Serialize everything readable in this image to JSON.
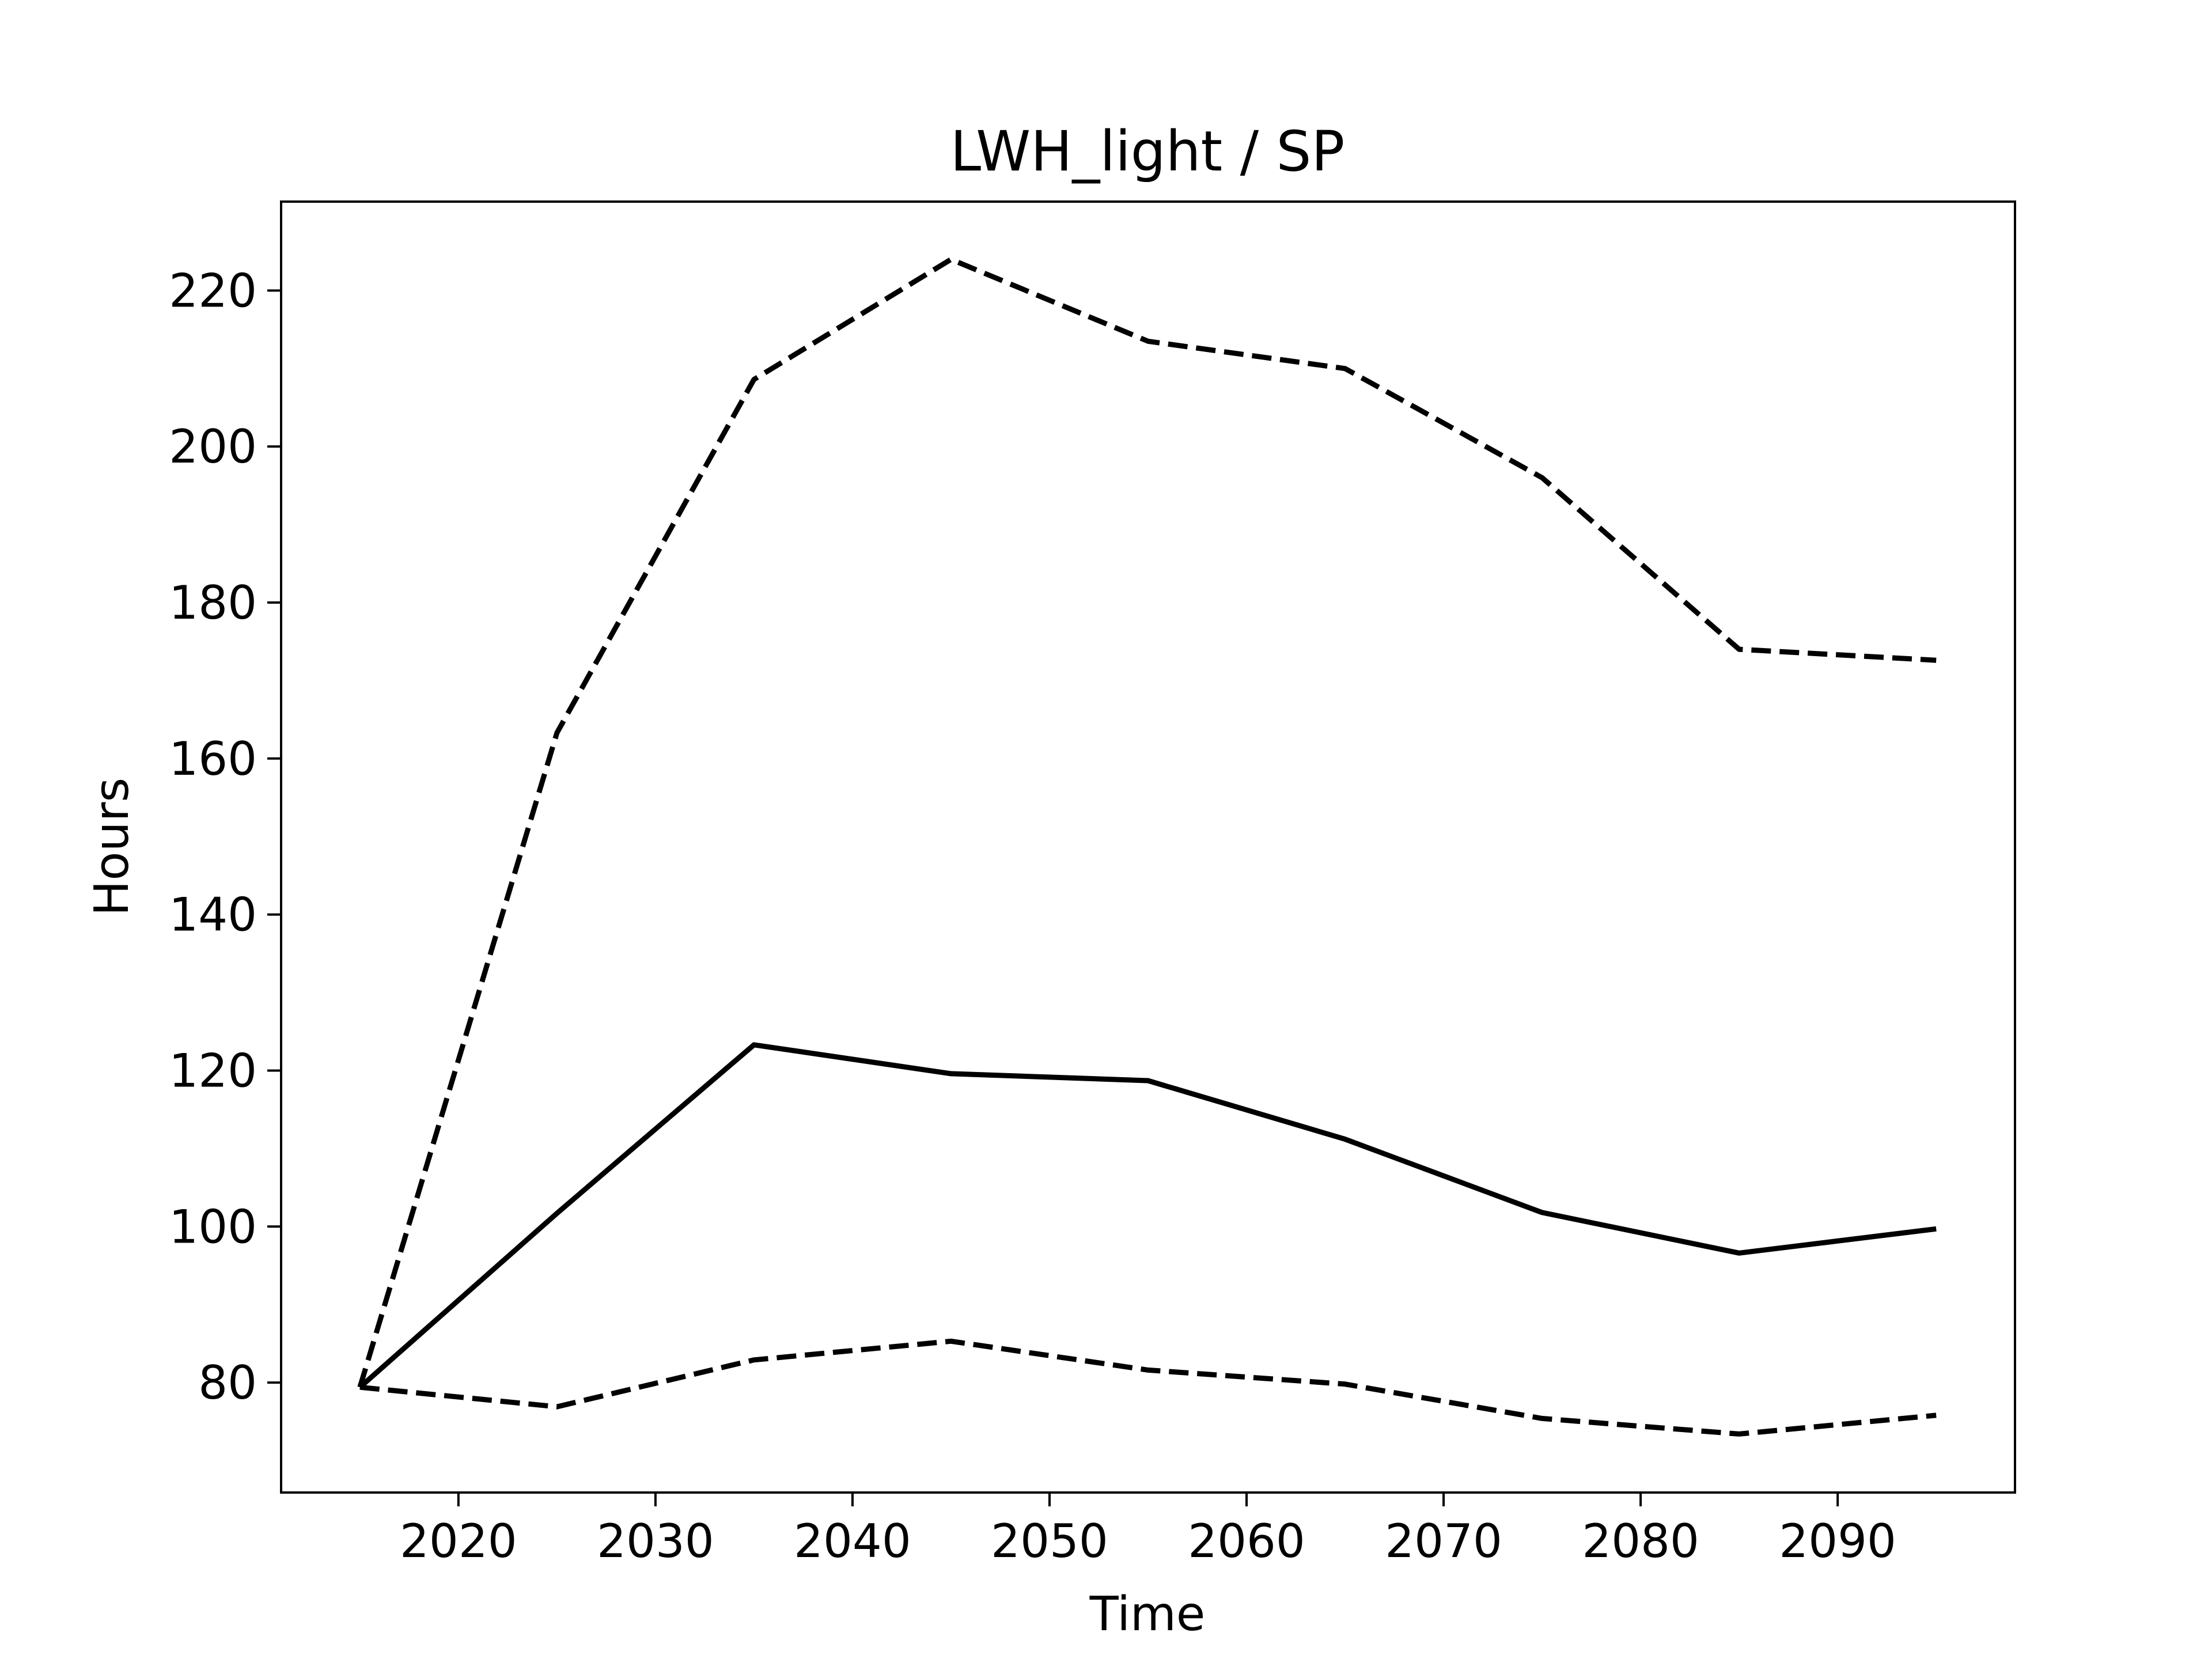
{
  "chart_data": {
    "type": "line",
    "title": "LWH_light / SP",
    "xlabel": "Time",
    "ylabel": "Hours",
    "xlim": [
      2011,
      2099
    ],
    "ylim": [
      65.9,
      231.4
    ],
    "xticks": [
      2020,
      2030,
      2040,
      2050,
      2060,
      2070,
      2080,
      2090
    ],
    "yticks": [
      80,
      100,
      120,
      140,
      160,
      180,
      200,
      220
    ],
    "grid": false,
    "legend": "none",
    "series": [
      {
        "style": "solid",
        "color": "#000000",
        "x": [
          2015,
          2025,
          2035,
          2045,
          2055,
          2065,
          2075,
          2085,
          2095
        ],
        "values": [
          79.4,
          101.7,
          123.3,
          119.6,
          118.7,
          111.2,
          101.8,
          96.6,
          99.7
        ]
      },
      {
        "style": "dashed",
        "color": "#000000",
        "x": [
          2015,
          2025,
          2035,
          2045,
          2055,
          2065,
          2075,
          2085,
          2095
        ],
        "values": [
          79.4,
          163.3,
          208.6,
          224.0,
          213.5,
          210.0,
          196.0,
          174.0,
          172.6
        ]
      },
      {
        "style": "dashed",
        "color": "#000000",
        "x": [
          2015,
          2025,
          2035,
          2045,
          2055,
          2065,
          2075,
          2085,
          2095
        ],
        "values": [
          79.4,
          76.9,
          82.9,
          85.3,
          81.6,
          79.8,
          75.4,
          73.4,
          75.8
        ]
      }
    ]
  }
}
